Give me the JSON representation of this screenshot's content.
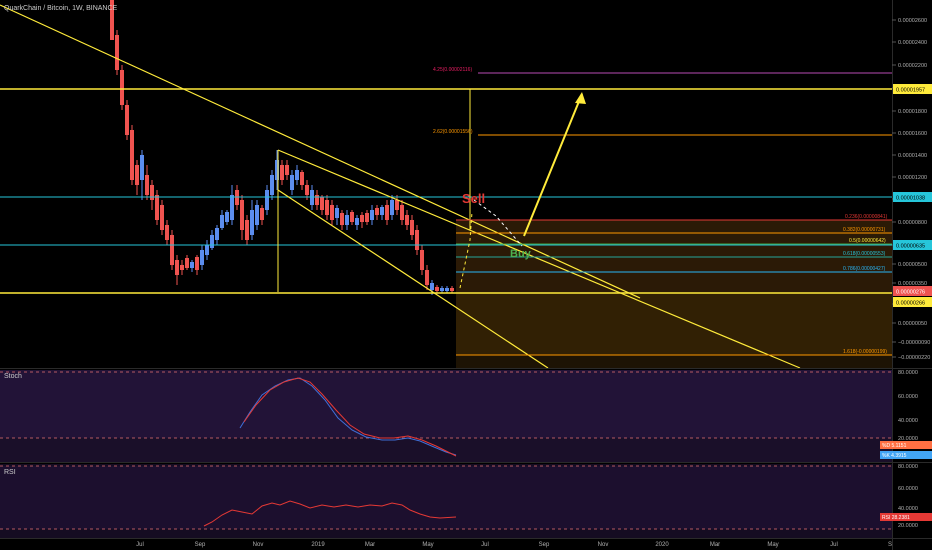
{
  "header": {
    "symbol": "QuarkChain / Bitcoin, 1W, BINANCE"
  },
  "price_axis": {
    "ticks": [
      "0.00002600",
      "0.00002400",
      "0.00002200",
      "0.00002000",
      "0.00001800",
      "0.00001600",
      "0.00001400",
      "0.00001200",
      "0.00001000",
      "0.00000800",
      "0.00000600",
      "0.00000500",
      "0.00000350",
      "0.00000200",
      "0.00000050",
      "−0.00000090",
      "−0.00000220"
    ],
    "markers": [
      {
        "label": "0.00001957",
        "bg": "#ffeb3b",
        "fg": "#000000"
      },
      {
        "label": "0.00001038",
        "bg": "#26c6da",
        "fg": "#000000"
      },
      {
        "label": "0.00000635",
        "bg": "#26c6da",
        "fg": "#000000"
      },
      {
        "label": "0.00000276",
        "bg": "#ef5350",
        "fg": "#ffffff"
      },
      {
        "label": "0.00000266",
        "bg": "#ffeb3b",
        "fg": "#000000"
      }
    ]
  },
  "time_axis": {
    "labels": [
      "Jul",
      "Sep",
      "Nov",
      "2019",
      "Mar",
      "May",
      "Jul",
      "Sep",
      "Nov",
      "2020",
      "Mar",
      "May",
      "Jul",
      "S"
    ]
  },
  "fib_labels": {
    "f425": "4.25(0.00002116)",
    "f262": "2.62(0.00001556)",
    "f0236": "0.236(0.00000841)",
    "f0382": "0.382(0.00000731)",
    "f05": "0.5(0.00000642)",
    "f0618": "0.618(0.00000553)",
    "f0786": "0.786(0.00000427)",
    "f1618": "1.618(-0.00000199)"
  },
  "annotations": {
    "sell": "Sell",
    "buy": "Buy"
  },
  "stoch": {
    "title": "Stoch",
    "ticks": [
      "80.0000",
      "60.0000",
      "40.0000",
      "20.0000"
    ],
    "k_label": "%D",
    "k_value": "5.1151",
    "d_label": "%K",
    "d_value": "4.3915"
  },
  "rsi": {
    "title": "RSI",
    "ticks": [
      "80.0000",
      "60.0000",
      "40.0000",
      "20.0000"
    ],
    "label": "RSI",
    "value": "28.2381"
  },
  "colors": {
    "up": "#5b8def",
    "down": "#ef5350",
    "yellow": "#ffeb3b",
    "cyan": "#26c6da",
    "orange": "#ff9800",
    "purple_bg": "#1d0f2c"
  }
}
